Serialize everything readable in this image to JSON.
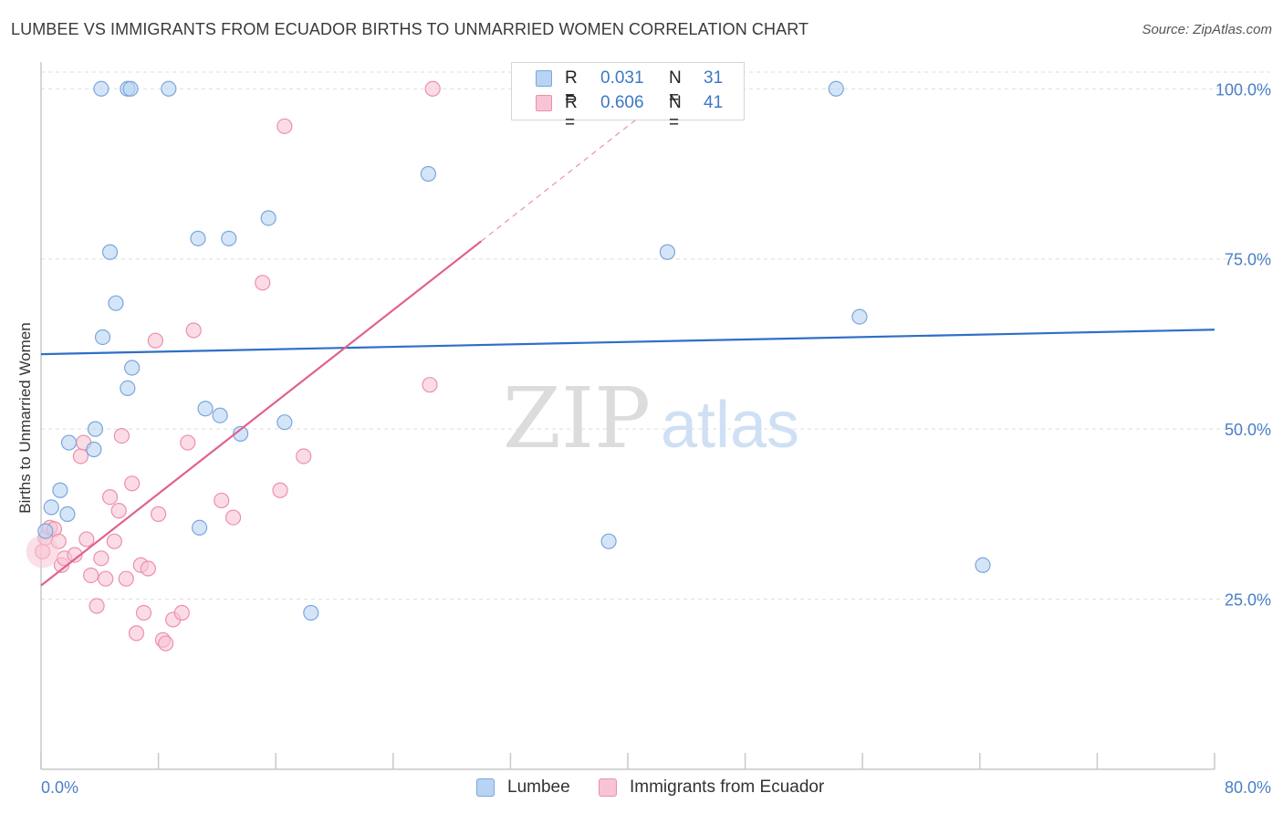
{
  "title": "LUMBEE VS IMMIGRANTS FROM ECUADOR BIRTHS TO UNMARRIED WOMEN CORRELATION CHART",
  "source": "Source: ZipAtlas.com",
  "watermark": {
    "zip": "ZIP",
    "atlas": "atlas"
  },
  "colors": {
    "lumbee_fill": "#b9d3f3",
    "lumbee_stroke": "#7aa6dc",
    "lumbee_line": "#2f6fc6",
    "ecuador_fill": "#f8c4d4",
    "ecuador_stroke": "#ec8fae",
    "ecuador_line": "#e2608c",
    "tick_label": "#4a7fc8",
    "grid": "#dddddd"
  },
  "legend_top": {
    "rows": [
      {
        "r_label": "R =",
        "r_value": "0.031",
        "n_label": "N =",
        "n_value": "31"
      },
      {
        "r_label": "R =",
        "r_value": "0.606",
        "n_label": "N =",
        "n_value": "41"
      }
    ]
  },
  "legend_bottom": {
    "items": [
      "Lumbee",
      "Immigrants from Ecuador"
    ]
  },
  "chart_data": {
    "type": "scatter",
    "title": "LUMBEE VS IMMIGRANTS FROM ECUADOR BIRTHS TO UNMARRIED WOMEN CORRELATION CHART",
    "xlabel": "",
    "ylabel": "Births to Unmarried Women",
    "xlim": [
      0,
      80
    ],
    "ylim": [
      0,
      105
    ],
    "x_tick_labels": [
      "0.0%",
      "80.0%"
    ],
    "y_ticks": [
      25,
      50,
      75,
      100
    ],
    "y_tick_labels": [
      "25.0%",
      "50.0%",
      "75.0%",
      "100.0%"
    ],
    "grid": true,
    "legend_placement": "bottom",
    "series": [
      {
        "name": "Lumbee",
        "r": 0.031,
        "n": 31,
        "trend": {
          "x": [
            0,
            80
          ],
          "y": [
            61.0,
            64.6
          ]
        },
        "points": [
          [
            0.3,
            35.0
          ],
          [
            0.7,
            38.5
          ],
          [
            1.3,
            41.0
          ],
          [
            1.8,
            37.5
          ],
          [
            1.9,
            48.0
          ],
          [
            3.6,
            47.0
          ],
          [
            3.7,
            50.0
          ],
          [
            4.2,
            63.5
          ],
          [
            4.7,
            76.0
          ],
          [
            5.1,
            68.5
          ],
          [
            5.9,
            56.0
          ],
          [
            6.2,
            59.0
          ],
          [
            4.1,
            100.0
          ],
          [
            5.9,
            100.0
          ],
          [
            6.1,
            100.0
          ],
          [
            8.7,
            100.0
          ],
          [
            10.7,
            78.0
          ],
          [
            12.8,
            78.0
          ],
          [
            15.5,
            81.0
          ],
          [
            11.2,
            53.0
          ],
          [
            12.2,
            52.0
          ],
          [
            13.6,
            49.3
          ],
          [
            10.8,
            35.5
          ],
          [
            16.6,
            51.0
          ],
          [
            18.4,
            23.0
          ],
          [
            26.4,
            87.5
          ],
          [
            38.7,
            33.5
          ],
          [
            42.7,
            76.0
          ],
          [
            54.2,
            100.0
          ],
          [
            55.8,
            66.5
          ],
          [
            64.2,
            30.0
          ]
        ]
      },
      {
        "name": "Immigrants from Ecuador",
        "r": 0.606,
        "n": 41,
        "trend": {
          "x": [
            0,
            30.0
          ],
          "y": [
            27.0,
            77.6
          ]
        },
        "trend_dashed": {
          "x": [
            30.0,
            42.0
          ],
          "y": [
            77.6,
            97.9
          ]
        },
        "points": [
          [
            0.1,
            32.0
          ],
          [
            0.3,
            34.0
          ],
          [
            0.6,
            35.5
          ],
          [
            0.9,
            35.3
          ],
          [
            1.2,
            33.5
          ],
          [
            1.4,
            30.0
          ],
          [
            1.6,
            31.0
          ],
          [
            2.3,
            31.5
          ],
          [
            2.7,
            46.0
          ],
          [
            2.9,
            48.0
          ],
          [
            3.1,
            33.8
          ],
          [
            3.4,
            28.5
          ],
          [
            3.8,
            24.0
          ],
          [
            4.1,
            31.0
          ],
          [
            4.4,
            28.0
          ],
          [
            4.7,
            40.0
          ],
          [
            5.0,
            33.5
          ],
          [
            5.3,
            38.0
          ],
          [
            5.5,
            49.0
          ],
          [
            5.8,
            28.0
          ],
          [
            6.2,
            42.0
          ],
          [
            6.5,
            20.0
          ],
          [
            6.8,
            30.0
          ],
          [
            7.0,
            23.0
          ],
          [
            7.3,
            29.5
          ],
          [
            7.8,
            63.0
          ],
          [
            8.0,
            37.5
          ],
          [
            8.3,
            19.0
          ],
          [
            8.5,
            18.5
          ],
          [
            9.0,
            22.0
          ],
          [
            9.6,
            23.0
          ],
          [
            10.0,
            48.0
          ],
          [
            10.4,
            64.5
          ],
          [
            12.3,
            39.5
          ],
          [
            13.1,
            37.0
          ],
          [
            15.1,
            71.5
          ],
          [
            16.6,
            94.5
          ],
          [
            16.3,
            41.0
          ],
          [
            17.9,
            46.0
          ],
          [
            26.5,
            56.5
          ],
          [
            26.7,
            100.0
          ]
        ]
      }
    ]
  }
}
